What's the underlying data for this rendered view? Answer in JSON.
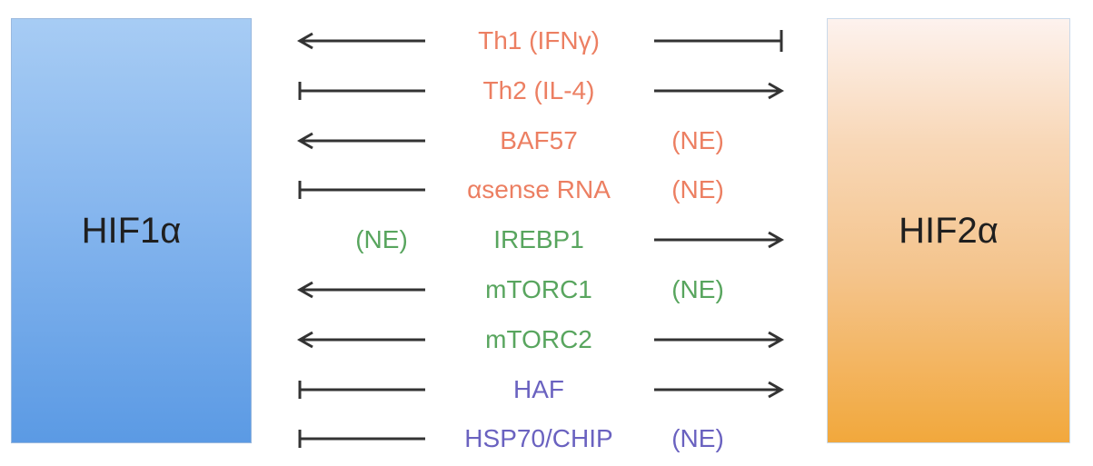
{
  "colors": {
    "red": "#ec7f62",
    "green": "#58a55e",
    "purple": "#6a62c0",
    "arrow": "#333333"
  },
  "boxes": {
    "left": "HIF1α",
    "right": "HIF2α"
  },
  "regulators": [
    {
      "label": "Th1 (IFNγ)",
      "color": "red",
      "left": "arrow",
      "right": "inhibit",
      "ne": ""
    },
    {
      "label": "Th2 (IL-4)",
      "color": "red",
      "left": "inhibit",
      "right": "arrow",
      "ne": ""
    },
    {
      "label": "BAF57",
      "color": "red",
      "left": "arrow",
      "right": "none",
      "ne": "(NE)"
    },
    {
      "label": "αsense RNA",
      "color": "red",
      "left": "inhibit",
      "right": "none",
      "ne": "(NE)"
    },
    {
      "label": "IREBP1",
      "color": "green",
      "left": "none",
      "right": "arrow",
      "ne": "(NE)"
    },
    {
      "label": "mTORC1",
      "color": "green",
      "left": "arrow",
      "right": "none",
      "ne": "(NE)"
    },
    {
      "label": "mTORC2",
      "color": "green",
      "left": "arrow",
      "right": "arrow",
      "ne": ""
    },
    {
      "label": "HAF",
      "color": "purple",
      "left": "inhibit",
      "right": "arrow",
      "ne": ""
    },
    {
      "label": "HSP70/CHIP",
      "color": "purple",
      "left": "inhibit",
      "right": "none",
      "ne": "(NE)"
    }
  ]
}
